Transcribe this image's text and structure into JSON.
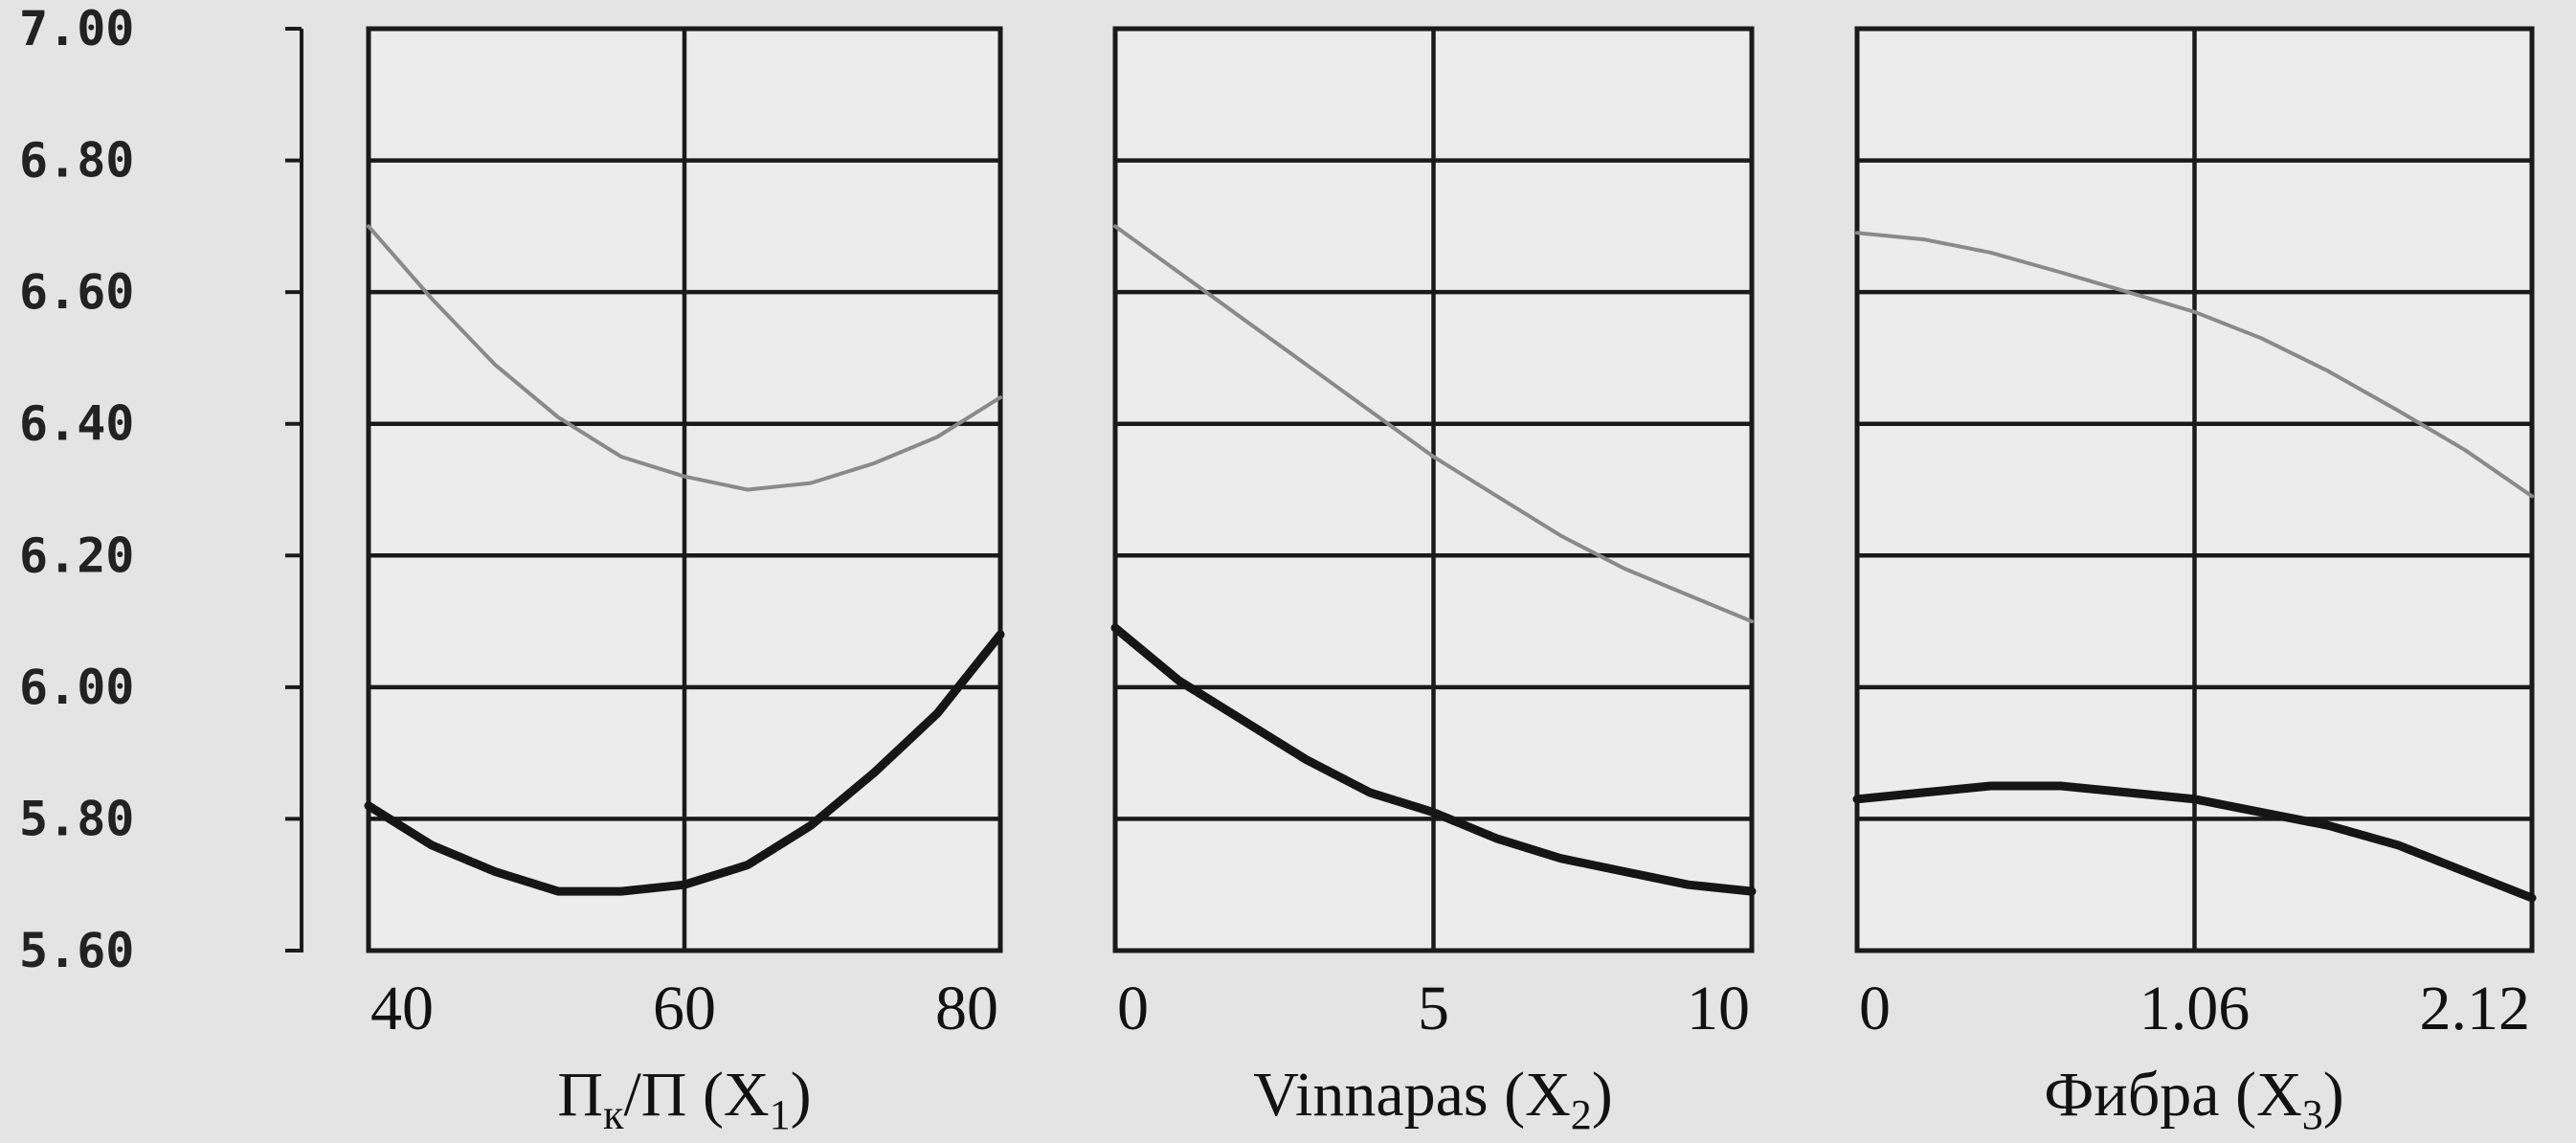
{
  "chart_data": [
    {
      "type": "line",
      "xlabel": {
        "main": "П",
        "sub1": "к",
        "mid": "/П (X",
        "sub2": "1",
        "end": ")"
      },
      "x_ticks": [
        "40",
        "60",
        "80"
      ],
      "xlim": [
        40,
        80
      ],
      "ylim": [
        5.6,
        7.0
      ],
      "y_ticks": [
        "5.60",
        "5.80",
        "6.00",
        "6.20",
        "6.40",
        "6.60",
        "6.80",
        "7.00"
      ],
      "grid": true,
      "series": [
        {
          "style": "thin",
          "color": "#8a8a8a",
          "x": [
            40,
            44,
            48,
            52,
            56,
            60,
            64,
            68,
            72,
            76,
            80
          ],
          "y": [
            6.7,
            6.59,
            6.49,
            6.41,
            6.35,
            6.32,
            6.3,
            6.31,
            6.34,
            6.38,
            6.44
          ]
        },
        {
          "style": "thick",
          "color": "#151515",
          "x": [
            40,
            44,
            48,
            52,
            56,
            60,
            64,
            68,
            72,
            76,
            80
          ],
          "y": [
            5.82,
            5.76,
            5.72,
            5.69,
            5.69,
            5.7,
            5.73,
            5.79,
            5.87,
            5.96,
            6.08
          ]
        }
      ]
    },
    {
      "type": "line",
      "xlabel": {
        "main": "Vinnapas (X",
        "sub2": "2",
        "end": ")"
      },
      "x_ticks": [
        "0",
        "5",
        "10"
      ],
      "xlim": [
        0,
        10
      ],
      "ylim": [
        5.6,
        7.0
      ],
      "grid": true,
      "series": [
        {
          "style": "thin",
          "color": "#8a8a8a",
          "x": [
            0,
            1,
            2,
            3,
            4,
            5,
            6,
            7,
            8,
            9,
            10
          ],
          "y": [
            6.7,
            6.63,
            6.56,
            6.49,
            6.42,
            6.35,
            6.29,
            6.23,
            6.18,
            6.14,
            6.1
          ]
        },
        {
          "style": "thick",
          "color": "#151515",
          "x": [
            0,
            1,
            2,
            3,
            4,
            5,
            6,
            7,
            8,
            9,
            10
          ],
          "y": [
            6.09,
            6.01,
            5.95,
            5.89,
            5.84,
            5.81,
            5.77,
            5.74,
            5.72,
            5.7,
            5.69
          ]
        }
      ]
    },
    {
      "type": "line",
      "xlabel": {
        "main": "Фибра (X",
        "sub2": "3",
        "end": ")"
      },
      "x_ticks": [
        "0",
        "1.06",
        "2.12"
      ],
      "xlim": [
        0,
        2.12
      ],
      "ylim": [
        5.6,
        7.0
      ],
      "grid": true,
      "series": [
        {
          "style": "thin",
          "color": "#8a8a8a",
          "x": [
            0,
            0.21,
            0.42,
            0.64,
            0.85,
            1.06,
            1.27,
            1.48,
            1.7,
            1.91,
            2.12
          ],
          "y": [
            6.69,
            6.68,
            6.66,
            6.63,
            6.6,
            6.57,
            6.53,
            6.48,
            6.42,
            6.36,
            6.29
          ]
        },
        {
          "style": "thick",
          "color": "#151515",
          "x": [
            0,
            0.21,
            0.42,
            0.64,
            0.85,
            1.06,
            1.27,
            1.48,
            1.7,
            1.91,
            2.12
          ],
          "y": [
            5.83,
            5.84,
            5.85,
            5.85,
            5.84,
            5.83,
            5.81,
            5.79,
            5.76,
            5.72,
            5.68
          ]
        }
      ]
    }
  ]
}
